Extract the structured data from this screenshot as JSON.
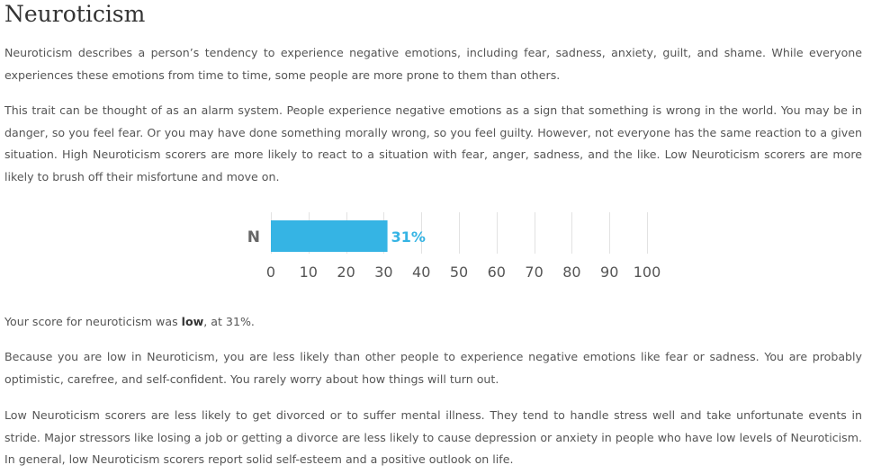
{
  "title": "Neuroticism",
  "paragraphs": {
    "p1": "Neuroticism describes a person’s tendency to experience negative emotions, including fear, sadness, anxiety, guilt, and shame. While everyone experiences these emotions from time to time, some people are more prone to them than others.",
    "p2": "This trait can be thought of as an alarm system. People experience negative emotions as a sign that something is wrong in the world. You may be in danger, so you feel fear. Or you may have done something morally wrong, so you feel guilty. However, not everyone has the same reaction to a given situation. High Neuroticism scorers are more likely to react to a situation with fear, anger, sadness, and the like. Low Neuroticism scorers are more likely to brush off their misfortune and move on.",
    "score_prefix": "Your score for neuroticism was ",
    "score_level": "low",
    "score_suffix": ", at 31%.",
    "p4": "Because you are low in Neuroticism, you are less likely than other people to experience negative emotions like fear or sadness. You are probably optimistic, carefree, and self-confident. You rarely worry about how things will turn out.",
    "p5": "Low Neuroticism scorers are less likely to get divorced or to suffer mental illness. They tend to handle stress well and take unfortunate events in stride. Major stressors like losing a job or getting a divorce are less likely to cause depression or anxiety in people who have low levels of Neuroticism. In general, low Neuroticism scorers report solid self-esteem and a positive outlook on life."
  },
  "chart_data": {
    "type": "bar",
    "orientation": "horizontal",
    "categories": [
      "N"
    ],
    "values": [
      31
    ],
    "value_labels": [
      "31%"
    ],
    "xlim": [
      0,
      100
    ],
    "xticks": [
      0,
      10,
      20,
      30,
      40,
      50,
      60,
      70,
      80,
      90,
      100
    ],
    "bar_color": "#35b4e4",
    "grid": true
  }
}
